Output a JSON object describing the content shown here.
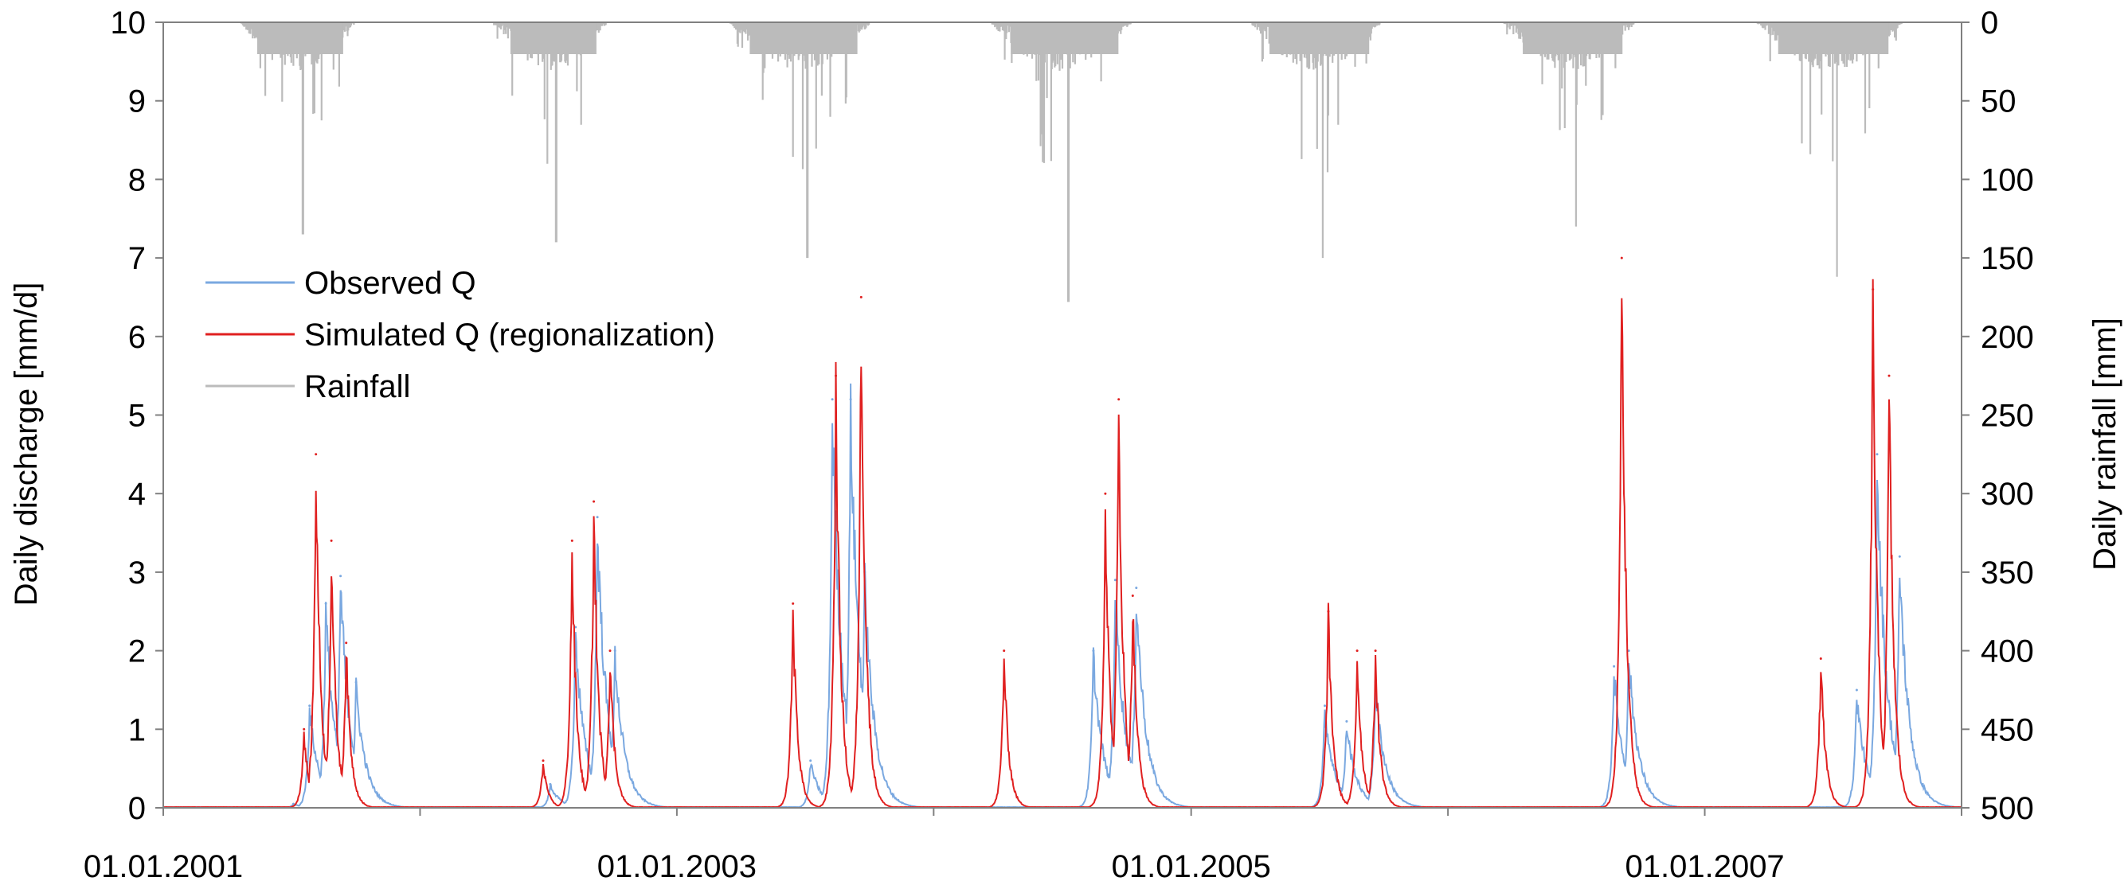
{
  "chart_data": {
    "type": "line",
    "title": "",
    "x_axis": {
      "tick_labels": [
        "01.01.2001",
        "01.01.2003",
        "01.01.2005",
        "01.01.2007"
      ],
      "range": [
        "2001-01-01",
        "2008-01-01"
      ]
    },
    "y_left": {
      "label": "Daily discharge [mm/d]",
      "ticks": [
        0,
        1,
        2,
        3,
        4,
        5,
        6,
        7,
        8,
        9,
        10
      ],
      "range": [
        0,
        10
      ]
    },
    "y_right": {
      "label": "Daily rainfall [mm]",
      "ticks": [
        0,
        50,
        100,
        150,
        200,
        250,
        300,
        350,
        400,
        450,
        500
      ],
      "range": [
        0,
        500
      ],
      "inverted": true
    },
    "grid": false,
    "legend": {
      "position": "upper-left"
    },
    "series": [
      {
        "name": "Observed Q",
        "color": "#7aa8e0",
        "peaks": [
          {
            "date": "2001-07-05",
            "value": 0.05
          },
          {
            "date": "2001-07-28",
            "value": 1.3
          },
          {
            "date": "2001-08-20",
            "value": 2.6
          },
          {
            "date": "2001-09-10",
            "value": 2.95
          },
          {
            "date": "2001-10-02",
            "value": 1.6
          },
          {
            "date": "2002-07-05",
            "value": 0.3
          },
          {
            "date": "2002-08-10",
            "value": 2.3
          },
          {
            "date": "2002-09-10",
            "value": 3.7
          },
          {
            "date": "2002-10-05",
            "value": 2.0
          },
          {
            "date": "2003-07-10",
            "value": 0.6
          },
          {
            "date": "2003-08-10",
            "value": 5.2
          },
          {
            "date": "2003-09-05",
            "value": 5.2
          },
          {
            "date": "2003-09-25",
            "value": 3.0
          },
          {
            "date": "2004-08-15",
            "value": 2.0
          },
          {
            "date": "2004-09-15",
            "value": 2.9
          },
          {
            "date": "2004-10-15",
            "value": 2.8
          },
          {
            "date": "2005-07-10",
            "value": 1.3
          },
          {
            "date": "2005-08-10",
            "value": 1.1
          },
          {
            "date": "2005-09-20",
            "value": 1.6
          },
          {
            "date": "2006-08-25",
            "value": 1.8
          },
          {
            "date": "2006-09-15",
            "value": 2.0
          },
          {
            "date": "2007-08-05",
            "value": 1.5
          },
          {
            "date": "2007-09-03",
            "value": 4.5
          },
          {
            "date": "2007-10-05",
            "value": 3.2
          }
        ]
      },
      {
        "name": "Simulated Q (regionalization)",
        "color": "#e02020",
        "peaks": [
          {
            "date": "2001-07-20",
            "value": 1.0
          },
          {
            "date": "2001-08-06",
            "value": 4.5
          },
          {
            "date": "2001-08-28",
            "value": 3.4
          },
          {
            "date": "2001-09-18",
            "value": 2.1
          },
          {
            "date": "2002-06-25",
            "value": 0.6
          },
          {
            "date": "2002-08-05",
            "value": 3.4
          },
          {
            "date": "2002-09-05",
            "value": 3.9
          },
          {
            "date": "2002-09-28",
            "value": 2.0
          },
          {
            "date": "2003-06-15",
            "value": 2.6
          },
          {
            "date": "2003-08-15",
            "value": 5.5
          },
          {
            "date": "2003-09-20",
            "value": 6.5
          },
          {
            "date": "2004-04-10",
            "value": 2.0
          },
          {
            "date": "2004-09-01",
            "value": 4.0
          },
          {
            "date": "2004-09-20",
            "value": 5.2
          },
          {
            "date": "2004-10-10",
            "value": 2.7
          },
          {
            "date": "2005-07-15",
            "value": 2.5
          },
          {
            "date": "2005-08-25",
            "value": 2.0
          },
          {
            "date": "2005-09-20",
            "value": 2.0
          },
          {
            "date": "2006-09-05",
            "value": 7.0
          },
          {
            "date": "2007-06-15",
            "value": 1.9
          },
          {
            "date": "2007-08-28",
            "value": 6.6
          },
          {
            "date": "2007-09-20",
            "value": 5.5
          }
        ]
      },
      {
        "name": "Rainfall",
        "color": "#bbbbbb",
        "axis": "right",
        "wet_seasons": [
          {
            "start": "2001-04-20",
            "end": "2001-09-30",
            "max_mm": 135
          },
          {
            "start": "2002-04-15",
            "end": "2002-09-25",
            "max_mm": 140
          },
          {
            "start": "2003-03-15",
            "end": "2003-10-05",
            "max_mm": 150
          },
          {
            "start": "2004-03-20",
            "end": "2004-10-10",
            "max_mm": 178
          },
          {
            "start": "2005-03-25",
            "end": "2005-09-30",
            "max_mm": 150
          },
          {
            "start": "2006-03-20",
            "end": "2006-09-25",
            "max_mm": 130
          },
          {
            "start": "2007-03-15",
            "end": "2007-10-10",
            "max_mm": 162
          }
        ]
      }
    ]
  }
}
